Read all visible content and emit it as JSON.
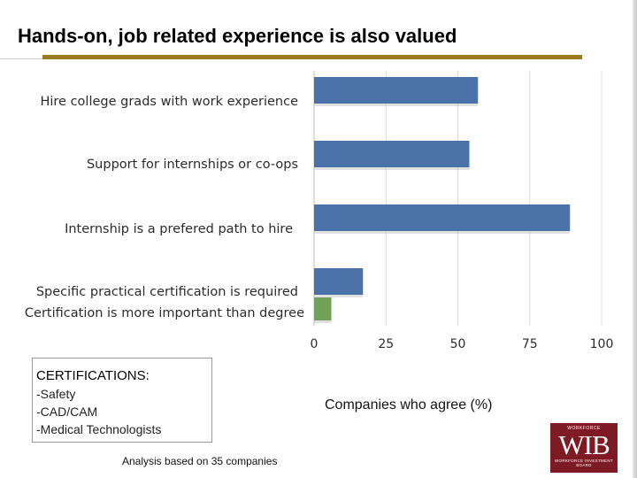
{
  "slide": {
    "title": "Hands-on, job related experience is also valued",
    "footnote": "Analysis based on 35 companies"
  },
  "certifications": {
    "title": "CERTIFICATIONS:",
    "items": [
      "-Safety",
      "-CAD/CAM",
      "-Medical Technologists"
    ]
  },
  "logo": {
    "top_text": "WORKFORCE",
    "mark": "WIB",
    "bottom_text": "WORKFORCE INVESTMENT BOARD"
  },
  "chart_data": {
    "type": "bar",
    "orientation": "horizontal",
    "title": "",
    "xlabel": "Companies who agree (%)",
    "ylabel": "",
    "xlim": [
      0,
      100
    ],
    "xticks": [
      0,
      25,
      50,
      75,
      100
    ],
    "grid": true,
    "categories": [
      "Hire college grads with work experience",
      "Support for internships or co-ops",
      "Internship is a prefered path to hire",
      "Specific practical certification is required",
      "Certification is more important than degree"
    ],
    "values": [
      57,
      54,
      89,
      17,
      6
    ],
    "colors": [
      "#4a72a9",
      "#4a72a9",
      "#4a72a9",
      "#4a72a9",
      "#6fa257"
    ]
  }
}
